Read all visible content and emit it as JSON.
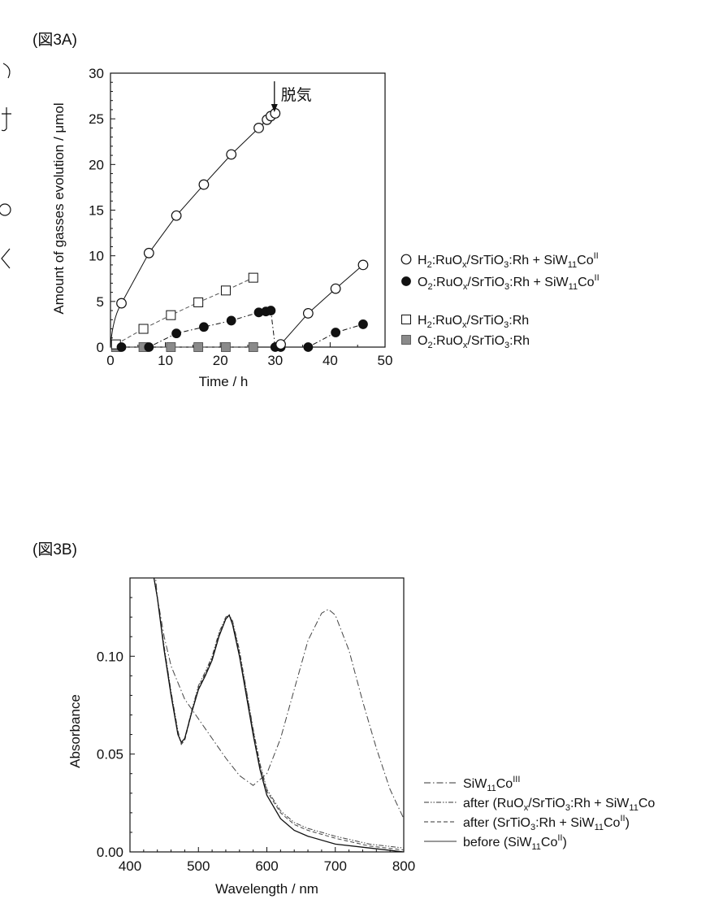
{
  "figure_labels": {
    "a": "(図3A)",
    "b": "(図3B)"
  },
  "colors": {
    "ink": "#111111",
    "gray_marker": "#8a8a8a",
    "dash_gray": "#555555"
  },
  "chart_data": [
    {
      "type": "scatter",
      "xlabel": "Time / h",
      "ylabel": "Amount of gasses evolution / μmol",
      "xlim": [
        0,
        50
      ],
      "ylim": [
        0,
        30
      ],
      "x_ticks": [
        0,
        10,
        20,
        30,
        40,
        50
      ],
      "y_ticks": [
        0,
        5,
        10,
        15,
        20,
        25,
        30
      ],
      "annotation": {
        "text": "脱気",
        "x": 30,
        "y": 25.8
      },
      "legend_position": "right",
      "series": [
        {
          "name": "H2:RuOx/SrTiO3:Rh + SiW11CoII",
          "legend_parts": [
            "H",
            "2",
            ":RuO",
            "x",
            "/SrTiO",
            "3",
            ":Rh + SiW",
            "11",
            "Co",
            "II"
          ],
          "marker": "open-circle",
          "x": [
            2,
            7,
            12,
            17,
            22,
            27,
            28.5,
            29.2,
            30,
            31,
            36,
            41,
            46
          ],
          "y": [
            4.8,
            10.3,
            14.4,
            17.8,
            21.1,
            24.0,
            24.9,
            25.3,
            25.6,
            0.3,
            3.7,
            6.4,
            9.0
          ]
        },
        {
          "name": "O2:RuOx/SrTiO3:Rh + SiW11CoII",
          "legend_parts": [
            "O",
            "2",
            ":RuO",
            "x",
            "/SrTiO",
            "3",
            ":Rh + SiW",
            "11",
            "Co",
            "II"
          ],
          "marker": "filled-circle",
          "x": [
            2,
            7,
            12,
            17,
            22,
            27,
            28.3,
            29.2,
            30,
            31,
            36,
            41,
            46
          ],
          "y": [
            0.0,
            0.0,
            1.5,
            2.2,
            2.9,
            3.8,
            3.9,
            4.0,
            0.0,
            0.0,
            0.0,
            1.6,
            2.5
          ]
        },
        {
          "name": "H2:RuOx/SrTiO3:Rh",
          "legend_parts": [
            "H",
            "2",
            ":RuO",
            "x",
            "/SrTiO",
            "3",
            ":Rh"
          ],
          "marker": "open-square",
          "x": [
            1,
            6,
            11,
            16,
            21,
            26
          ],
          "y": [
            0.3,
            2.0,
            3.5,
            4.9,
            6.2,
            7.6
          ]
        },
        {
          "name": "O2:RuOx/SrTiO3:Rh",
          "legend_parts": [
            "O",
            "2",
            ":RuO",
            "x",
            "/SrTiO",
            "3",
            ":Rh"
          ],
          "marker": "gray-square",
          "x": [
            1,
            6,
            11,
            16,
            21,
            26
          ],
          "y": [
            0.0,
            0.0,
            0.0,
            0.0,
            0.0,
            0.0
          ]
        }
      ]
    },
    {
      "type": "line",
      "xlabel": "Wavelength / nm",
      "ylabel": "Absorbance",
      "xlim": [
        400,
        800
      ],
      "ylim": [
        0,
        0.14
      ],
      "x_ticks": [
        400,
        500,
        600,
        700,
        800
      ],
      "y_ticks": [
        0.0,
        0.05,
        0.1
      ],
      "y_tick_labels": [
        "0.00",
        "0.05",
        "0.10"
      ],
      "legend_position": "right",
      "series": [
        {
          "name": "SiW11CoIII",
          "legend_parts": [
            "SiW",
            "11",
            "Co",
            "III"
          ],
          "style": "dash-dot",
          "x": [
            435,
            440,
            450,
            460,
            480,
            500,
            520,
            540,
            560,
            580,
            600,
            620,
            640,
            660,
            680,
            690,
            700,
            720,
            740,
            760,
            780,
            800
          ],
          "y": [
            0.15,
            0.13,
            0.11,
            0.095,
            0.078,
            0.068,
            0.058,
            0.048,
            0.039,
            0.034,
            0.04,
            0.058,
            0.083,
            0.108,
            0.122,
            0.124,
            0.121,
            0.103,
            0.077,
            0.053,
            0.032,
            0.017
          ]
        },
        {
          "name": "after (RuOx/SrTiO3:Rh + SiW11Co",
          "legend_parts": [
            "after (RuO",
            "x",
            "/SrTiO",
            "3",
            ":Rh + SiW",
            "11",
            "Co"
          ],
          "style": "dash-dot-dot",
          "x": [
            400,
            420,
            430,
            440,
            450,
            460,
            470,
            475,
            480,
            490,
            500,
            510,
            520,
            530,
            540,
            545,
            550,
            560,
            570,
            580,
            590,
            600,
            620,
            640,
            660,
            700,
            750,
            800
          ],
          "y": [
            0.15,
            0.15,
            0.15,
            0.13,
            0.105,
            0.082,
            0.062,
            0.055,
            0.058,
            0.072,
            0.085,
            0.092,
            0.1,
            0.112,
            0.12,
            0.121,
            0.118,
            0.103,
            0.083,
            0.063,
            0.045,
            0.032,
            0.021,
            0.015,
            0.012,
            0.008,
            0.004,
            0.002
          ]
        },
        {
          "name": "after (SrTiO3:Rh + SiW11CoII)",
          "legend_parts": [
            "after (SrTiO",
            "3",
            ":Rh + SiW",
            "11",
            "Co",
            "II",
            ")"
          ],
          "style": "dashed",
          "x": [
            400,
            420,
            430,
            440,
            450,
            460,
            470,
            475,
            480,
            490,
            500,
            510,
            520,
            530,
            540,
            545,
            550,
            560,
            570,
            580,
            590,
            600,
            620,
            640,
            660,
            700,
            750,
            800
          ],
          "y": [
            0.15,
            0.15,
            0.15,
            0.13,
            0.104,
            0.081,
            0.061,
            0.055,
            0.057,
            0.071,
            0.084,
            0.091,
            0.099,
            0.111,
            0.119,
            0.121,
            0.117,
            0.102,
            0.082,
            0.062,
            0.044,
            0.031,
            0.02,
            0.014,
            0.011,
            0.007,
            0.003,
            0.001
          ]
        },
        {
          "name": "before (SiW11CoII)",
          "legend_parts": [
            "before (SiW",
            "11",
            "Co",
            "II",
            ")"
          ],
          "style": "solid",
          "x": [
            400,
            420,
            430,
            440,
            450,
            460,
            470,
            475,
            480,
            490,
            500,
            510,
            520,
            530,
            540,
            545,
            550,
            560,
            570,
            580,
            590,
            600,
            620,
            640,
            660,
            700,
            750,
            800
          ],
          "y": [
            0.15,
            0.15,
            0.15,
            0.13,
            0.103,
            0.08,
            0.06,
            0.056,
            0.058,
            0.071,
            0.083,
            0.09,
            0.098,
            0.11,
            0.119,
            0.121,
            0.116,
            0.1,
            0.08,
            0.06,
            0.042,
            0.029,
            0.017,
            0.011,
            0.008,
            0.004,
            0.002,
            0.0
          ]
        }
      ]
    }
  ]
}
